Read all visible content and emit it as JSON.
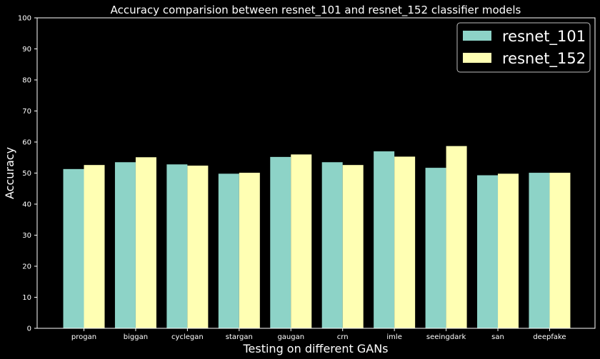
{
  "chart_data": {
    "type": "bar",
    "title": "Accuracy comparision between resnet_101 and resnet_152 classifier models",
    "xlabel": "Testing on different GANs",
    "ylabel": "Accuracy",
    "ylim": [
      0,
      100
    ],
    "yticks": [
      0,
      10,
      20,
      30,
      40,
      50,
      60,
      70,
      80,
      90,
      100
    ],
    "categories": [
      "progan",
      "biggan",
      "cyclegan",
      "stargan",
      "gaugan",
      "crn",
      "imle",
      "seeingdark",
      "san",
      "deepfake"
    ],
    "series": [
      {
        "name": "resnet_101",
        "color": "#8dd3c7",
        "values": [
          51.3,
          53.5,
          52.8,
          49.8,
          55.2,
          53.5,
          57.0,
          51.7,
          49.3,
          50.1
        ]
      },
      {
        "name": "resnet_152",
        "color": "#ffffb3",
        "values": [
          52.6,
          55.1,
          52.4,
          50.1,
          56.0,
          52.6,
          55.3,
          58.7,
          49.8,
          50.1
        ]
      }
    ],
    "legend_position": "top-right",
    "grid": false,
    "background": "#000000",
    "axis_color": "#ffffff"
  }
}
